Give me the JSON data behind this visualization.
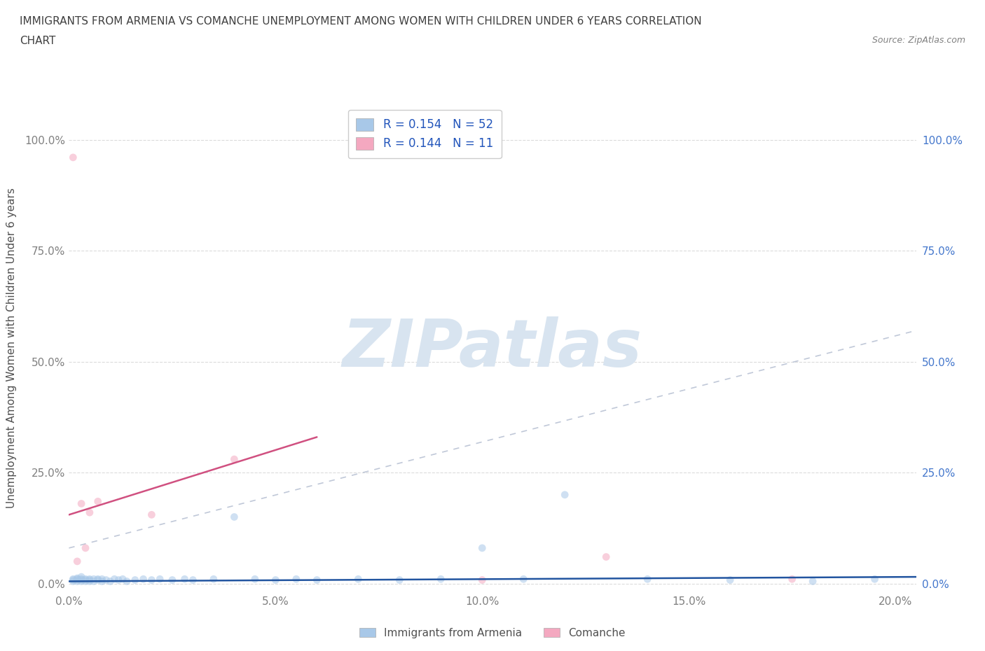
{
  "title_line1": "IMMIGRANTS FROM ARMENIA VS COMANCHE UNEMPLOYMENT AMONG WOMEN WITH CHILDREN UNDER 6 YEARS CORRELATION",
  "title_line2": "CHART",
  "source": "Source: ZipAtlas.com",
  "ylabel": "Unemployment Among Women with Children Under 6 years",
  "xlim": [
    0.0,
    0.205
  ],
  "ylim": [
    -0.02,
    1.08
  ],
  "watermark": "ZIPatlas",
  "legend": [
    {
      "label": "Immigrants from Armenia",
      "color": "#a8c8e8",
      "R": 0.154,
      "N": 52
    },
    {
      "label": "Comanche",
      "color": "#f4a8c0",
      "R": 0.144,
      "N": 11
    }
  ],
  "armenia_scatter_x": [
    0.001,
    0.001,
    0.001,
    0.002,
    0.002,
    0.002,
    0.002,
    0.003,
    0.003,
    0.003,
    0.003,
    0.004,
    0.004,
    0.004,
    0.005,
    0.005,
    0.005,
    0.006,
    0.006,
    0.007,
    0.007,
    0.008,
    0.008,
    0.009,
    0.01,
    0.011,
    0.012,
    0.013,
    0.014,
    0.016,
    0.018,
    0.02,
    0.022,
    0.025,
    0.028,
    0.03,
    0.035,
    0.04,
    0.045,
    0.05,
    0.055,
    0.06,
    0.07,
    0.08,
    0.09,
    0.1,
    0.11,
    0.12,
    0.14,
    0.16,
    0.18,
    0.195
  ],
  "armenia_scatter_y": [
    0.008,
    0.01,
    0.005,
    0.005,
    0.008,
    0.01,
    0.012,
    0.005,
    0.008,
    0.01,
    0.015,
    0.005,
    0.008,
    0.01,
    0.005,
    0.008,
    0.01,
    0.005,
    0.01,
    0.008,
    0.01,
    0.005,
    0.01,
    0.008,
    0.005,
    0.01,
    0.008,
    0.01,
    0.005,
    0.008,
    0.01,
    0.008,
    0.01,
    0.008,
    0.01,
    0.008,
    0.01,
    0.15,
    0.01,
    0.008,
    0.01,
    0.008,
    0.01,
    0.008,
    0.01,
    0.08,
    0.01,
    0.2,
    0.01,
    0.008,
    0.005,
    0.01
  ],
  "comanche_scatter_x": [
    0.001,
    0.002,
    0.003,
    0.004,
    0.005,
    0.007,
    0.02,
    0.04,
    0.1,
    0.13,
    0.175
  ],
  "comanche_scatter_y": [
    0.96,
    0.05,
    0.18,
    0.08,
    0.16,
    0.185,
    0.155,
    0.28,
    0.008,
    0.06,
    0.01
  ],
  "armenia_trend": [
    0.0,
    0.205,
    0.005,
    0.015
  ],
  "comanche_trend": [
    0.0,
    0.06,
    0.155,
    0.33
  ],
  "dash_trend": [
    0.0,
    0.205,
    0.08,
    0.57
  ],
  "armenia_color": "#a8c8e8",
  "comanche_color": "#f4a8c0",
  "armenia_line_color": "#2255a0",
  "comanche_line_color": "#d05080",
  "dash_color": "#c0c8d8",
  "background_color": "#ffffff",
  "grid_color": "#cccccc",
  "title_color": "#404040",
  "axis_label_color": "#505050",
  "left_tick_color": "#808080",
  "right_tick_color": "#4477cc",
  "legend_text_color": "#2255bb",
  "watermark_color": "#d8e4f0",
  "scatter_size": 60,
  "scatter_alpha": 0.55,
  "trend_linewidth": 1.8
}
